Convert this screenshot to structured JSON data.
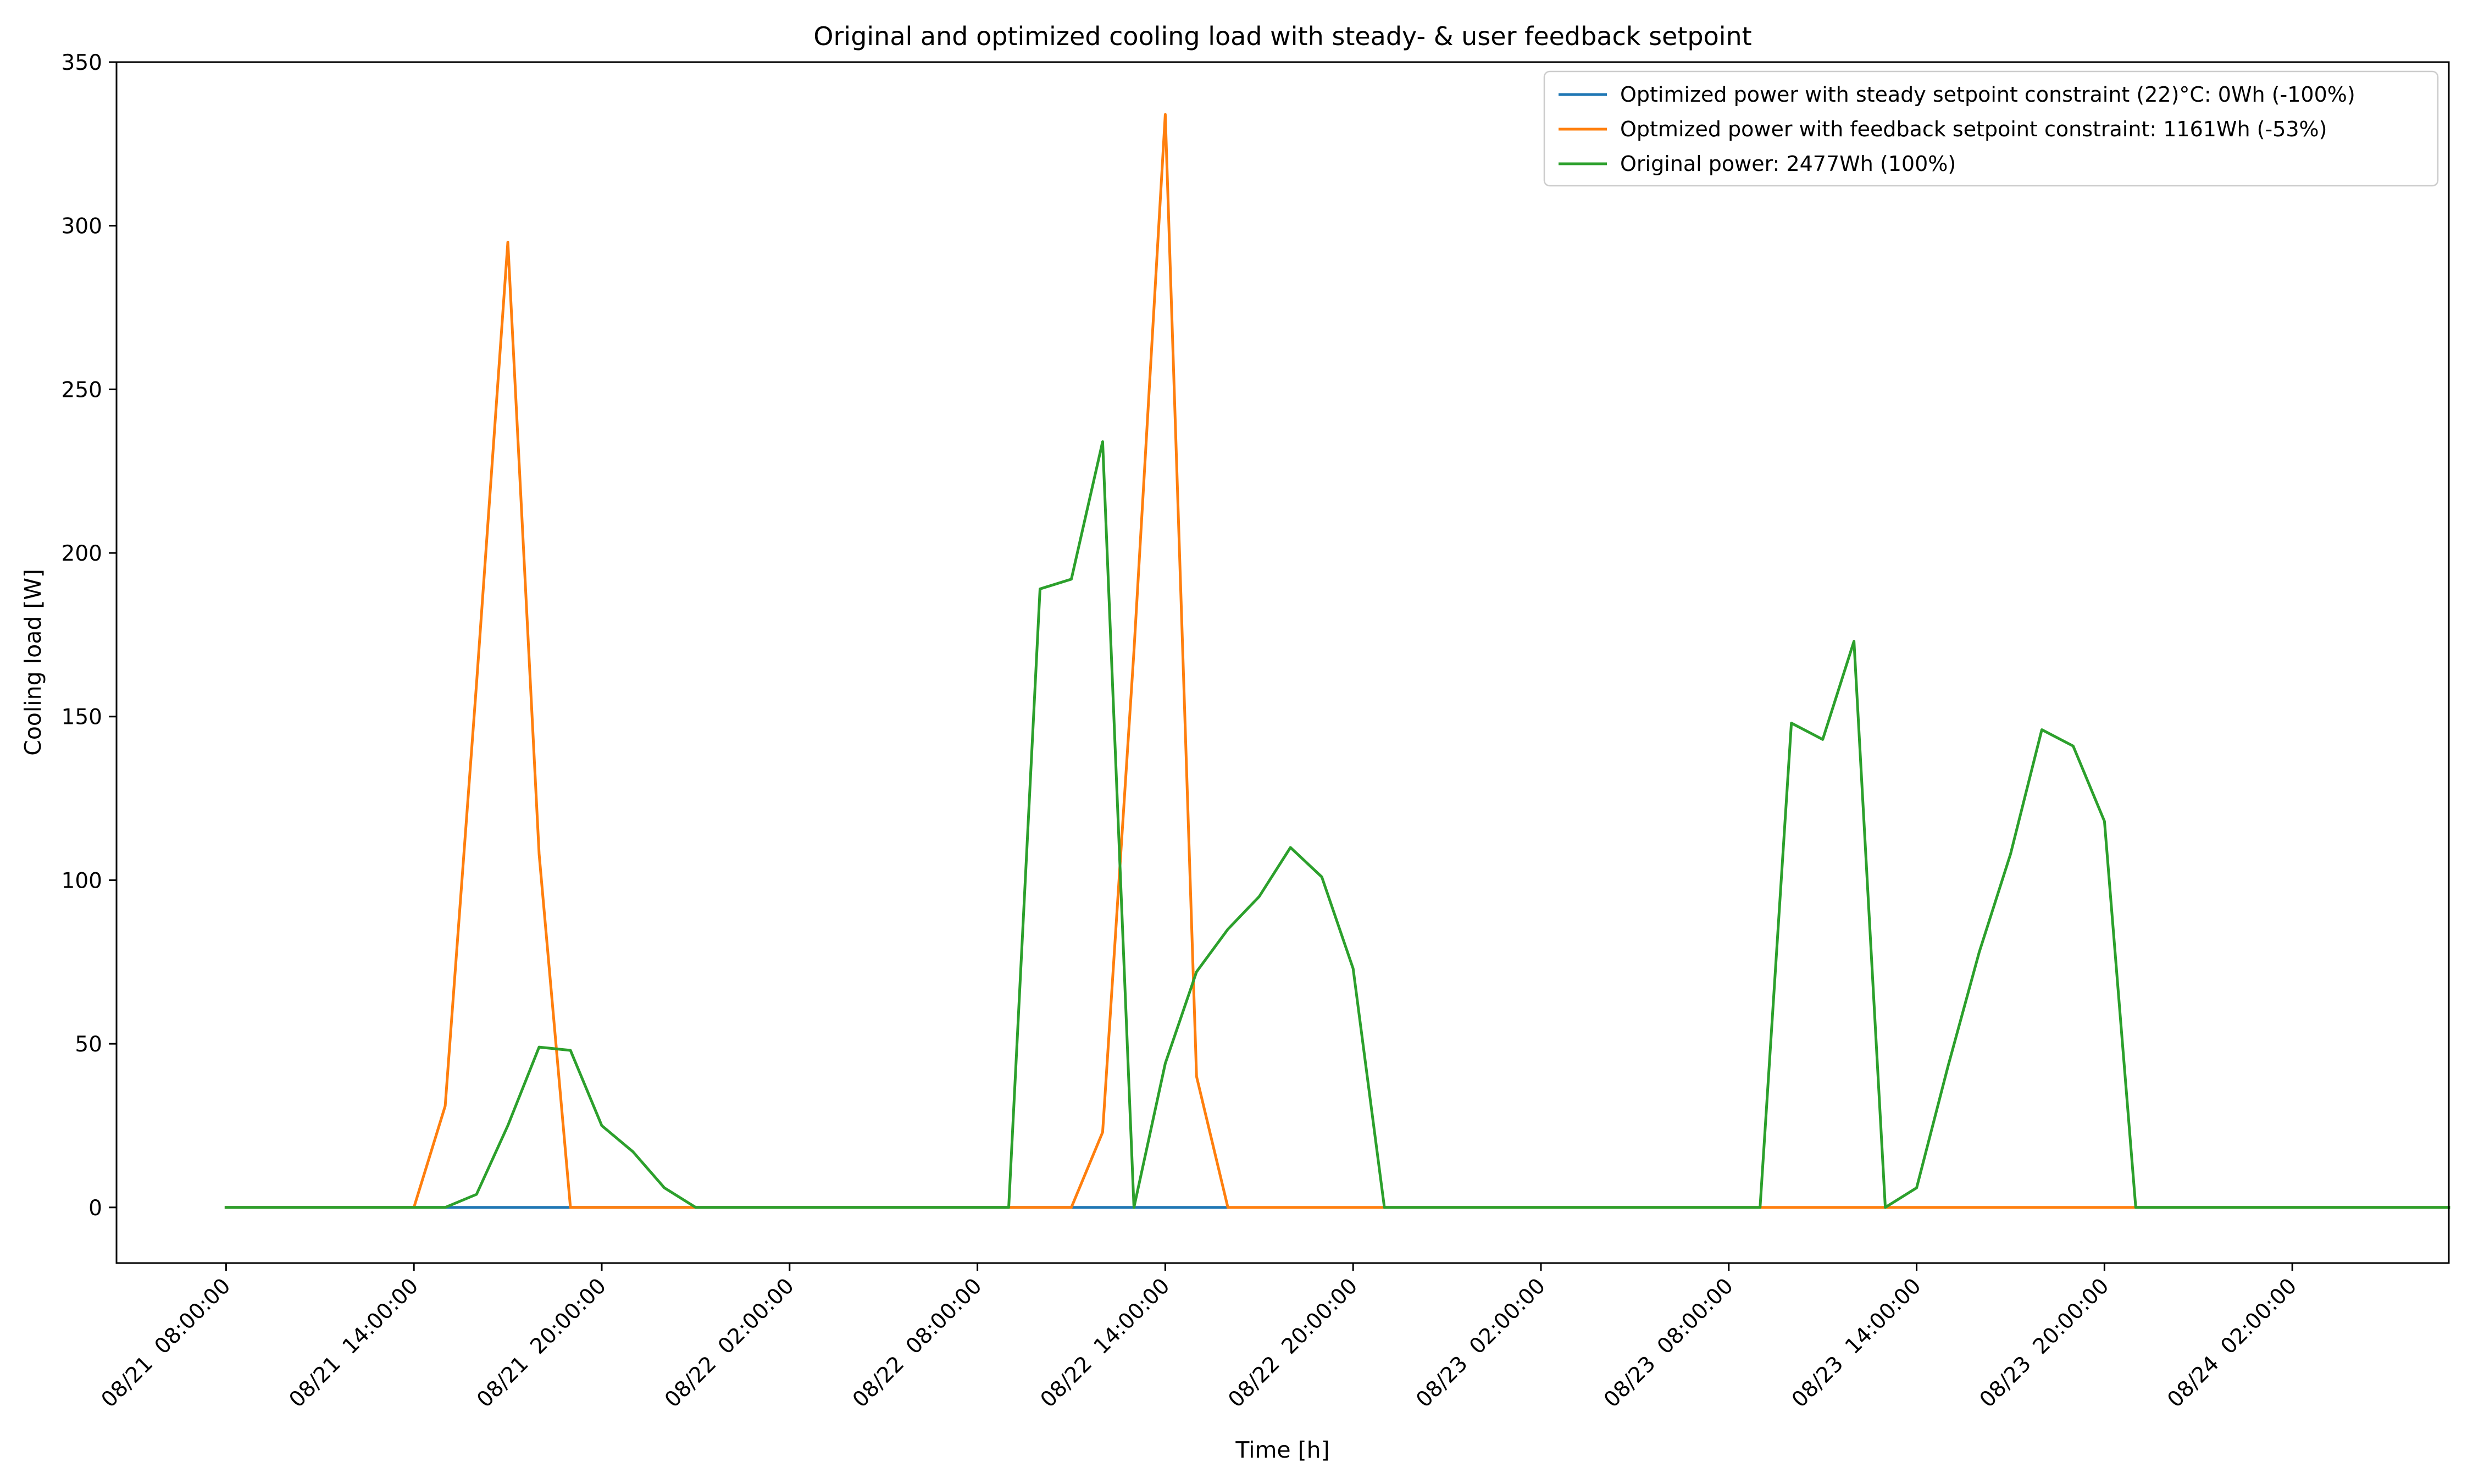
{
  "chart_data": {
    "type": "line",
    "title": "Original and optimized cooling load with steady- & user feedback setpoint",
    "xlabel": "Time [h]",
    "ylabel": "Cooling load [W]",
    "x_tick_labels": [
      "08/21  08:00:00",
      "08/21  14:00:00",
      "08/21  20:00:00",
      "08/22  02:00:00",
      "08/22  08:00:00",
      "08/22  14:00:00",
      "08/22  20:00:00",
      "08/23  02:00:00",
      "08/23  08:00:00",
      "08/23  14:00:00",
      "08/23  20:00:00",
      "08/24  02:00:00"
    ],
    "y_ticks": [
      0,
      50,
      100,
      150,
      200,
      250,
      300,
      350
    ],
    "ylim": [
      -17,
      350
    ],
    "xlim_hours": [
      -3.5,
      71.0
    ],
    "grid": false,
    "legend_position": "top-right",
    "series": [
      {
        "name": "Optimized power with steady setpoint constraint (22)$^\\circ$C: 0Wh (-100%)",
        "legend_text": "Optimized power with steady setpoint constraint (22)°C: 0Wh (-100%)",
        "color": "#1f77b4",
        "points": [
          [
            0,
            0
          ],
          [
            11,
            0
          ],
          [
            29,
            0
          ],
          [
            32,
            0
          ]
        ]
      },
      {
        "name": "Optmized power with feedback setpoint constraint: 1161Wh (-53%)",
        "legend_text": "Optmized power with feedback setpoint constraint: 1161Wh (-53%)",
        "color": "#ff7f0e",
        "points": [
          [
            0,
            0
          ],
          [
            6,
            0
          ],
          [
            7,
            31
          ],
          [
            8,
            160
          ],
          [
            9,
            295
          ],
          [
            10,
            108
          ],
          [
            11,
            0
          ],
          [
            12,
            0
          ],
          [
            27,
            0
          ],
          [
            28,
            23
          ],
          [
            29,
            170
          ],
          [
            30,
            334
          ],
          [
            31,
            40
          ],
          [
            32,
            0
          ],
          [
            71,
            0
          ]
        ]
      },
      {
        "name": "Original power: 2477Wh (100%)",
        "legend_text": "Original power: 2477Wh (100%)",
        "color": "#2ca02c",
        "points": [
          [
            0,
            0
          ],
          [
            7,
            0
          ],
          [
            8,
            4
          ],
          [
            9,
            25
          ],
          [
            10,
            49
          ],
          [
            11,
            48
          ],
          [
            12,
            25
          ],
          [
            13,
            17
          ],
          [
            14,
            6
          ],
          [
            15,
            0
          ],
          [
            25,
            0
          ],
          [
            26,
            189
          ],
          [
            27,
            192
          ],
          [
            28,
            234
          ],
          [
            29,
            0
          ],
          [
            30,
            44
          ],
          [
            31,
            72
          ],
          [
            32,
            85
          ],
          [
            33,
            95
          ],
          [
            34,
            110
          ],
          [
            35,
            101
          ],
          [
            36,
            73
          ],
          [
            37,
            0
          ],
          [
            49,
            0
          ],
          [
            50,
            148
          ],
          [
            51,
            143
          ],
          [
            52,
            173
          ],
          [
            53,
            0
          ],
          [
            54,
            6
          ],
          [
            55,
            43
          ],
          [
            56,
            78
          ],
          [
            57,
            108
          ],
          [
            58,
            146
          ],
          [
            59,
            141
          ],
          [
            60,
            118
          ],
          [
            61,
            0
          ],
          [
            71,
            0
          ]
        ]
      }
    ]
  }
}
